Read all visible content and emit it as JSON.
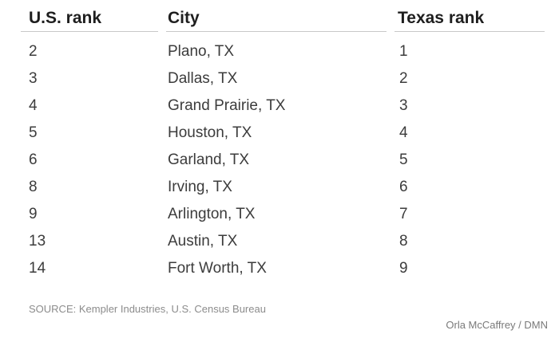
{
  "chart_data": {
    "type": "table",
    "columns": [
      "U.S. rank",
      "City",
      "Texas rank"
    ],
    "rows": [
      {
        "us_rank": "2",
        "city": "Plano, TX",
        "texas_rank": "1"
      },
      {
        "us_rank": "3",
        "city": "Dallas, TX",
        "texas_rank": "2"
      },
      {
        "us_rank": "4",
        "city": "Grand Prairie, TX",
        "texas_rank": "3"
      },
      {
        "us_rank": "5",
        "city": "Houston, TX",
        "texas_rank": "4"
      },
      {
        "us_rank": "6",
        "city": "Garland, TX",
        "texas_rank": "5"
      },
      {
        "us_rank": "8",
        "city": "Irving, TX",
        "texas_rank": "6"
      },
      {
        "us_rank": "9",
        "city": "Arlington, TX",
        "texas_rank": "7"
      },
      {
        "us_rank": "13",
        "city": "Austin, TX",
        "texas_rank": "8"
      },
      {
        "us_rank": "14",
        "city": "Fort Worth, TX",
        "texas_rank": "9"
      }
    ],
    "source": "SOURCE: Kempler Industries, U.S. Census Bureau",
    "credit": "Orla McCaffrey / DMN"
  }
}
